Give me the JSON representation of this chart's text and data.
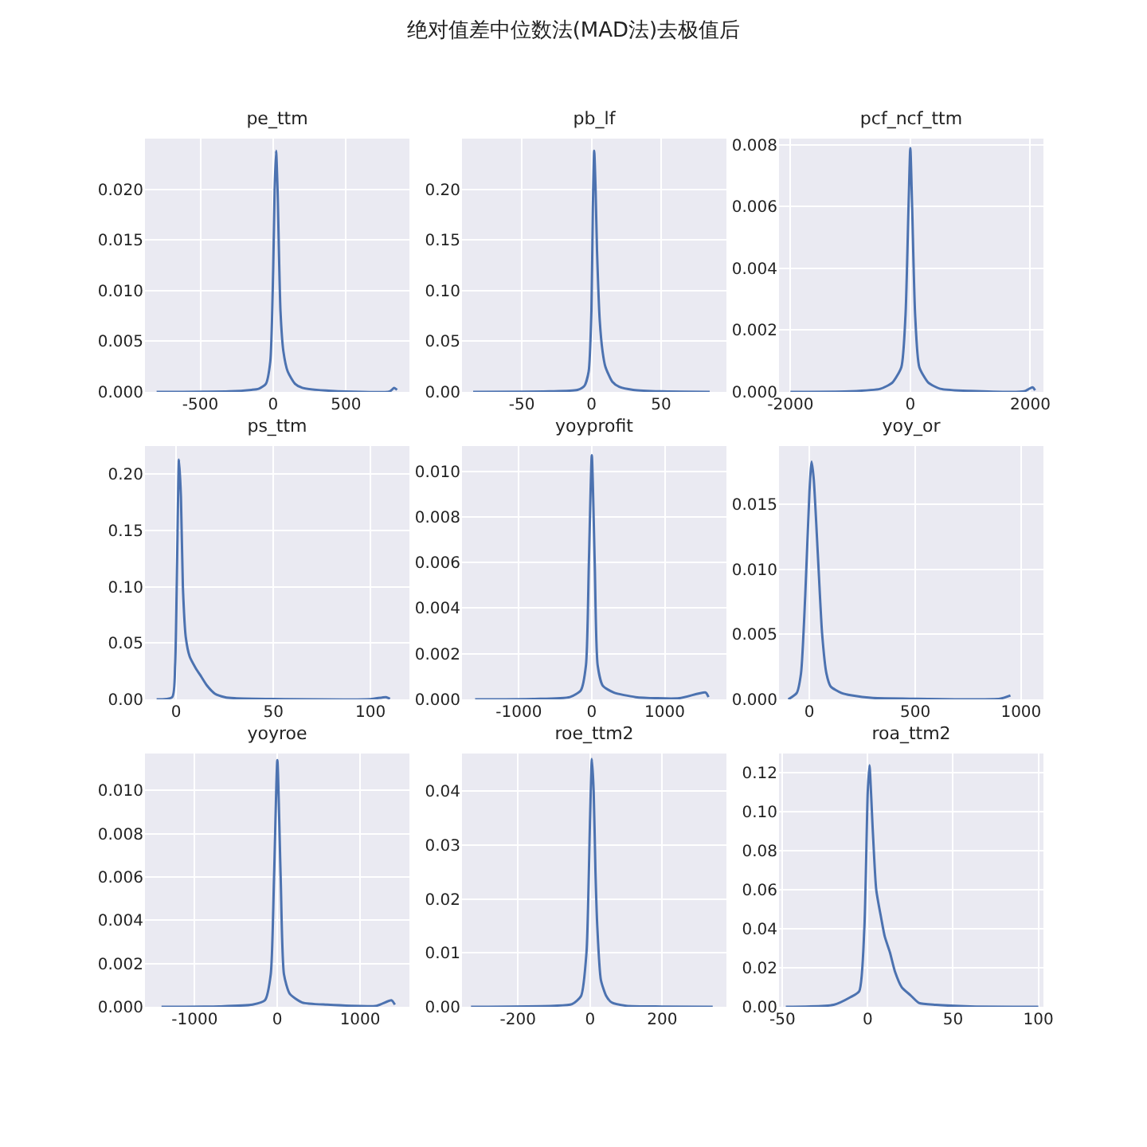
{
  "chart_data": [
    {
      "type": "line",
      "title": "pe_ttm",
      "annotations": [
        "绝对值差中位数法(MAD法)去极值后"
      ],
      "x": [
        -800,
        -300,
        -150,
        -100,
        -50,
        -20,
        0,
        10,
        20,
        30,
        50,
        70,
        100,
        150,
        200,
        400,
        800,
        830,
        850
      ],
      "series": [
        {
          "color": "#4c72b0",
          "values": [
            0,
            5e-05,
            0.0002,
            0.0003,
            0.0008,
            0.003,
            0.012,
            0.02,
            0.0238,
            0.02,
            0.008,
            0.004,
            0.002,
            0.0008,
            0.0004,
            0.0001,
            5e-05,
            0.0004,
            0.0002
          ]
        }
      ],
      "xlim": [
        -880,
        935
      ],
      "ylim": [
        0,
        0.025
      ],
      "xticks": [
        -500,
        0,
        500
      ],
      "yticks": [
        {
          "value": 0,
          "label": "0.000"
        },
        {
          "value": 0.005,
          "label": "0.005"
        },
        {
          "value": 0.01,
          "label": "0.010"
        },
        {
          "value": 0.015,
          "label": "0.015"
        },
        {
          "value": 0.02,
          "label": "0.020"
        }
      ],
      "grid": true
    },
    {
      "type": "line",
      "title": "pb_lf",
      "x": [
        -85,
        -30,
        -10,
        -5,
        -2,
        0,
        1,
        2,
        3,
        4,
        6,
        8,
        10,
        15,
        20,
        30,
        50,
        85
      ],
      "series": [
        {
          "color": "#4c72b0",
          "values": [
            0,
            0.0005,
            0.002,
            0.006,
            0.02,
            0.08,
            0.18,
            0.238,
            0.2,
            0.14,
            0.07,
            0.04,
            0.025,
            0.01,
            0.005,
            0.002,
            0.0005,
            0
          ]
        }
      ],
      "xlim": [
        -93,
        97
      ],
      "ylim": [
        0,
        0.25
      ],
      "xticks": [
        -50,
        0,
        50
      ],
      "yticks": [
        {
          "value": 0,
          "label": "0.00"
        },
        {
          "value": 0.05,
          "label": "0.05"
        },
        {
          "value": 0.1,
          "label": "0.10"
        },
        {
          "value": 0.15,
          "label": "0.15"
        },
        {
          "value": 0.2,
          "label": "0.20"
        }
      ],
      "grid": true
    },
    {
      "type": "line",
      "title": "pcf_ncf_ttm",
      "x": [
        -2000,
        -1000,
        -500,
        -300,
        -150,
        -80,
        -30,
        0,
        30,
        80,
        150,
        300,
        500,
        1000,
        1900,
        2040,
        2080
      ],
      "series": [
        {
          "color": "#4c72b0",
          "values": [
            0,
            2e-05,
            0.0001,
            0.0003,
            0.0008,
            0.0025,
            0.006,
            0.0079,
            0.006,
            0.0025,
            0.0008,
            0.0003,
            0.0001,
            3e-05,
            2e-05,
            0.00015,
            5e-05
          ]
        }
      ],
      "xlim": [
        -2190,
        2220
      ],
      "ylim": [
        0,
        0.0082
      ],
      "xticks": [
        -2000,
        0,
        2000
      ],
      "yticks": [
        {
          "value": 0,
          "label": "0.000"
        },
        {
          "value": 0.002,
          "label": "0.002"
        },
        {
          "value": 0.004,
          "label": "0.004"
        },
        {
          "value": 0.006,
          "label": "0.006"
        },
        {
          "value": 0.008,
          "label": "0.008"
        }
      ],
      "grid": true
    },
    {
      "type": "line",
      "title": "ps_ttm",
      "x": [
        -10,
        -2,
        -0.5,
        0.5,
        1.5,
        2.5,
        3.5,
        5,
        7,
        10,
        13,
        16,
        20,
        25,
        30,
        50,
        100,
        108,
        110
      ],
      "series": [
        {
          "color": "#4c72b0",
          "values": [
            0,
            0.002,
            0.03,
            0.12,
            0.213,
            0.18,
            0.1,
            0.055,
            0.038,
            0.028,
            0.02,
            0.012,
            0.005,
            0.002,
            0.001,
            0.0003,
            0.0002,
            0.002,
            0.0005
          ]
        }
      ],
      "xlim": [
        -16,
        120
      ],
      "ylim": [
        0,
        0.225
      ],
      "xticks": [
        0,
        50,
        100
      ],
      "yticks": [
        {
          "value": 0,
          "label": "0.00"
        },
        {
          "value": 0.05,
          "label": "0.05"
        },
        {
          "value": 0.1,
          "label": "0.10"
        },
        {
          "value": 0.15,
          "label": "0.15"
        },
        {
          "value": 0.2,
          "label": "0.20"
        }
      ],
      "grid": true
    },
    {
      "type": "line",
      "title": "yoyprofit",
      "x": [
        -1600,
        -800,
        -300,
        -150,
        -80,
        -40,
        0,
        40,
        80,
        150,
        300,
        600,
        1200,
        1560,
        1600
      ],
      "series": [
        {
          "color": "#4c72b0",
          "values": [
            0,
            2e-05,
            0.0001,
            0.0004,
            0.0015,
            0.006,
            0.0107,
            0.006,
            0.0015,
            0.0006,
            0.0003,
            0.0001,
            5e-05,
            0.0003,
            0.0001
          ]
        }
      ],
      "xlim": [
        -1780,
        1846
      ],
      "ylim": [
        0,
        0.0111
      ],
      "xticks": [
        -1000,
        0,
        1000
      ],
      "yticks": [
        {
          "value": 0,
          "label": "0.000"
        },
        {
          "value": 0.002,
          "label": "0.002"
        },
        {
          "value": 0.004,
          "label": "0.004"
        },
        {
          "value": 0.006,
          "label": "0.006"
        },
        {
          "value": 0.008,
          "label": "0.008"
        },
        {
          "value": 0.01,
          "label": "0.010"
        }
      ],
      "grid": true
    },
    {
      "type": "line",
      "title": "yoy_or",
      "x": [
        -100,
        -60,
        -40,
        -20,
        0,
        10,
        20,
        40,
        60,
        80,
        100,
        150,
        200,
        300,
        500,
        900,
        950
      ],
      "series": [
        {
          "color": "#4c72b0",
          "values": [
            0,
            0.0005,
            0.002,
            0.008,
            0.016,
            0.0183,
            0.017,
            0.011,
            0.005,
            0.002,
            0.001,
            0.0005,
            0.0003,
            0.0001,
            5e-05,
            5e-05,
            0.0003
          ]
        }
      ],
      "xlim": [
        -144,
        1106
      ],
      "ylim": [
        0,
        0.0195
      ],
      "xticks": [
        0,
        500,
        1000
      ],
      "yticks": [
        {
          "value": 0,
          "label": "0.000"
        },
        {
          "value": 0.005,
          "label": "0.005"
        },
        {
          "value": 0.01,
          "label": "0.010"
        },
        {
          "value": 0.015,
          "label": "0.015"
        }
      ],
      "grid": true
    },
    {
      "type": "line",
      "title": "yoyroe",
      "x": [
        -1400,
        -700,
        -300,
        -150,
        -80,
        -40,
        0,
        40,
        80,
        150,
        300,
        600,
        1200,
        1380,
        1420
      ],
      "series": [
        {
          "color": "#4c72b0",
          "values": [
            0,
            2e-05,
            0.0001,
            0.0003,
            0.0015,
            0.006,
            0.0114,
            0.006,
            0.0015,
            0.0006,
            0.0002,
            0.0001,
            5e-05,
            0.0003,
            0.0001
          ]
        }
      ],
      "xlim": [
        -1600,
        1596
      ],
      "ylim": [
        0,
        0.0117
      ],
      "xticks": [
        -1000,
        0,
        1000
      ],
      "yticks": [
        {
          "value": 0,
          "label": "0.000"
        },
        {
          "value": 0.002,
          "label": "0.002"
        },
        {
          "value": 0.004,
          "label": "0.004"
        },
        {
          "value": 0.006,
          "label": "0.006"
        },
        {
          "value": 0.008,
          "label": "0.008"
        },
        {
          "value": 0.01,
          "label": "0.010"
        }
      ],
      "grid": true
    },
    {
      "type": "line",
      "title": "roe_ttm2",
      "x": [
        -330,
        -100,
        -50,
        -25,
        -10,
        0,
        5,
        10,
        15,
        20,
        30,
        45,
        60,
        100,
        200,
        340
      ],
      "series": [
        {
          "color": "#4c72b0",
          "values": [
            0,
            0.0002,
            0.0005,
            0.002,
            0.01,
            0.035,
            0.046,
            0.04,
            0.025,
            0.015,
            0.005,
            0.002,
            0.0008,
            0.0002,
            5e-05,
            0
          ]
        }
      ],
      "xlim": [
        -355,
        378
      ],
      "ylim": [
        0,
        0.047
      ],
      "xticks": [
        -200,
        0,
        200
      ],
      "yticks": [
        {
          "value": 0,
          "label": "0.00"
        },
        {
          "value": 0.01,
          "label": "0.01"
        },
        {
          "value": 0.02,
          "label": "0.02"
        },
        {
          "value": 0.03,
          "label": "0.03"
        },
        {
          "value": 0.04,
          "label": "0.04"
        }
      ],
      "grid": true
    },
    {
      "type": "line",
      "title": "roa_ttm2",
      "x": [
        -48,
        -20,
        -10,
        -5,
        -2,
        0,
        1,
        3,
        5,
        8,
        10,
        13,
        16,
        20,
        25,
        30,
        40,
        60,
        100
      ],
      "series": [
        {
          "color": "#4c72b0",
          "values": [
            0,
            0.001,
            0.005,
            0.008,
            0.04,
            0.11,
            0.124,
            0.09,
            0.06,
            0.045,
            0.036,
            0.028,
            0.018,
            0.01,
            0.006,
            0.002,
            0.001,
            0.0002,
            0
          ]
        }
      ],
      "xlim": [
        -52,
        103
      ],
      "ylim": [
        0,
        0.13
      ],
      "xticks": [
        -50,
        0,
        50,
        100
      ],
      "yticks": [
        {
          "value": 0,
          "label": "0.00"
        },
        {
          "value": 0.02,
          "label": "0.02"
        },
        {
          "value": 0.04,
          "label": "0.04"
        },
        {
          "value": 0.06,
          "label": "0.06"
        },
        {
          "value": 0.08,
          "label": "0.08"
        },
        {
          "value": 0.1,
          "label": "0.10"
        },
        {
          "value": 0.12,
          "label": "0.12"
        }
      ],
      "grid": true
    }
  ]
}
